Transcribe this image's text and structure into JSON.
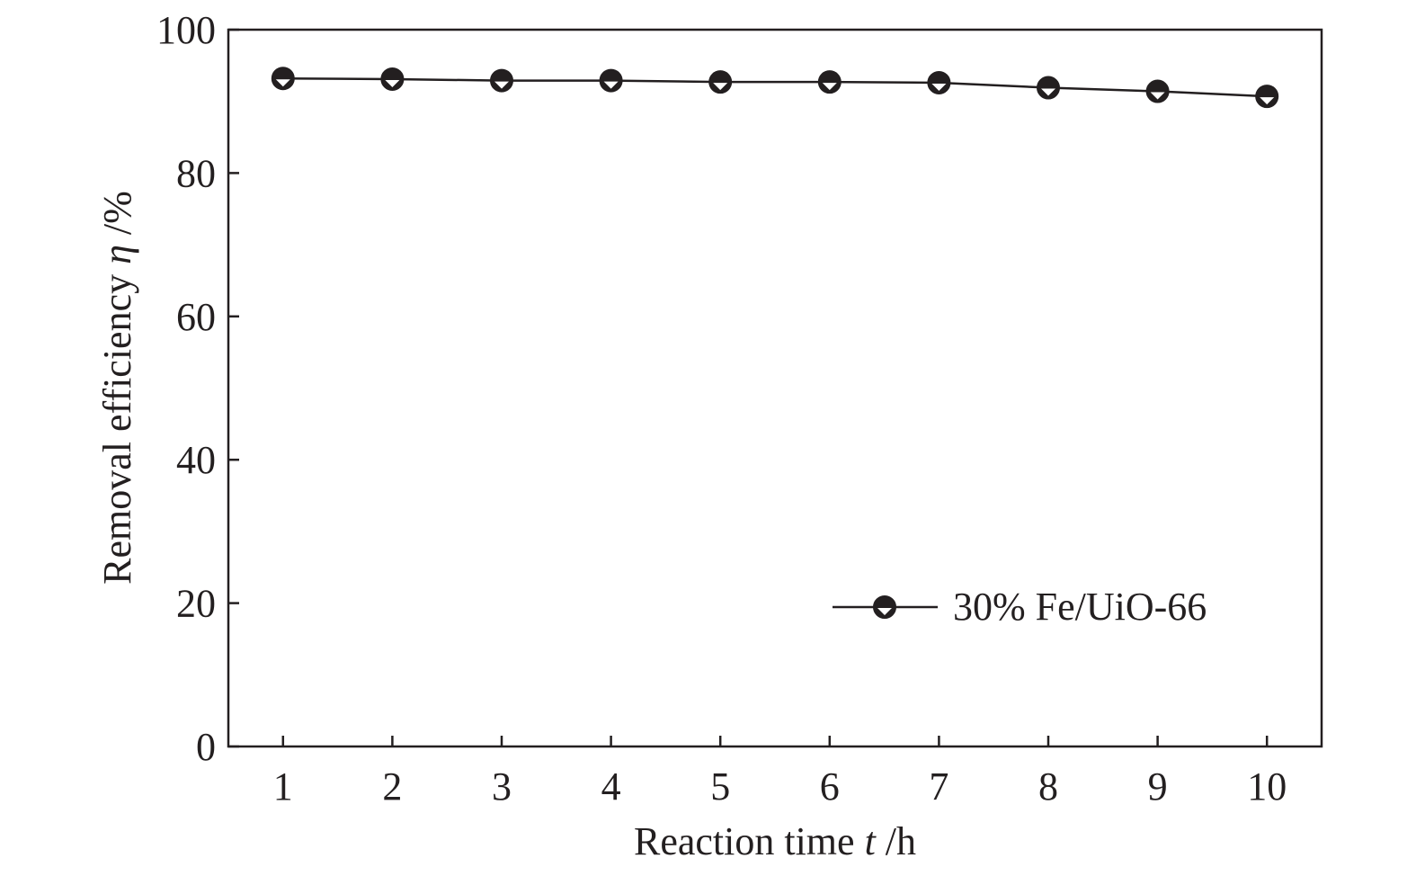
{
  "chart_data": {
    "type": "line",
    "title": "",
    "xlabel": {
      "prefix": "Reaction time ",
      "symbol": "t",
      "suffix": " /h"
    },
    "ylabel": {
      "prefix": "Removal efficiency ",
      "symbol": "η",
      "suffix": " /%"
    },
    "x": [
      1,
      2,
      3,
      4,
      5,
      6,
      7,
      8,
      9,
      10
    ],
    "xlim": [
      0.5,
      10.5
    ],
    "ylim": [
      0,
      100
    ],
    "xticks": [
      "1",
      "2",
      "3",
      "4",
      "5",
      "6",
      "7",
      "8",
      "9",
      "10"
    ],
    "yticks": [
      "0",
      "20",
      "40",
      "60",
      "80",
      "100"
    ],
    "grid": false,
    "legend_position": "lower-right",
    "series": [
      {
        "name": "30% Fe/UiO-66",
        "color": "#231f20",
        "marker": "half-filled-circle",
        "values": [
          93.2,
          93.1,
          92.9,
          92.9,
          92.7,
          92.7,
          92.6,
          91.9,
          91.4,
          90.7
        ]
      }
    ]
  }
}
